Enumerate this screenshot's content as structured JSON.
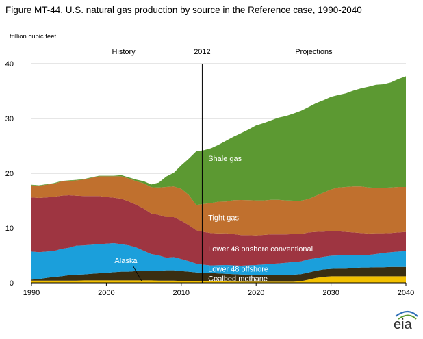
{
  "chart_data": {
    "type": "area",
    "title": "Figure MT-44. U.S. natural gas production by source in the Reference case, 1990-2040",
    "ylabel": "trillion cubic feet",
    "xlabel": "",
    "xlim": [
      1990,
      2040
    ],
    "ylim": [
      0,
      40
    ],
    "x_ticks": [
      1990,
      2000,
      2010,
      2020,
      2030,
      2040
    ],
    "y_ticks": [
      0,
      10,
      20,
      30,
      40
    ],
    "grid": "horizontal",
    "stacked": true,
    "divider": {
      "x": 2012.8,
      "label": "2012"
    },
    "period_labels": [
      "History",
      "Projections"
    ],
    "logo_text": "eia",
    "x": [
      1990,
      1991,
      1992,
      1993,
      1994,
      1995,
      1996,
      1997,
      1998,
      1999,
      2000,
      2001,
      2002,
      2003,
      2004,
      2005,
      2006,
      2007,
      2008,
      2009,
      2010,
      2011,
      2012,
      2013,
      2014,
      2015,
      2016,
      2017,
      2018,
      2019,
      2020,
      2021,
      2022,
      2023,
      2024,
      2025,
      2026,
      2027,
      2028,
      2029,
      2030,
      2031,
      2032,
      2033,
      2034,
      2035,
      2036,
      2037,
      2038,
      2039,
      2040
    ],
    "series": [
      {
        "name": "Alaska",
        "color": "#f2c000",
        "label_color": "#f2c000",
        "values": [
          0.4,
          0.4,
          0.4,
          0.4,
          0.4,
          0.4,
          0.4,
          0.45,
          0.45,
          0.45,
          0.45,
          0.45,
          0.45,
          0.45,
          0.45,
          0.45,
          0.45,
          0.4,
          0.4,
          0.4,
          0.35,
          0.35,
          0.3,
          0.3,
          0.28,
          0.26,
          0.25,
          0.24,
          0.22,
          0.2,
          0.2,
          0.2,
          0.2,
          0.2,
          0.2,
          0.2,
          0.3,
          0.6,
          0.9,
          1.1,
          1.2,
          1.2,
          1.2,
          1.2,
          1.2,
          1.2,
          1.2,
          1.2,
          1.2,
          1.2,
          1.2
        ]
      },
      {
        "name": "Coalbed methane",
        "color": "#3a2e12",
        "label_color": "#ffffff",
        "values": [
          0.2,
          0.3,
          0.5,
          0.7,
          0.8,
          1.0,
          1.1,
          1.1,
          1.2,
          1.3,
          1.4,
          1.5,
          1.6,
          1.6,
          1.7,
          1.7,
          1.7,
          1.8,
          1.9,
          1.9,
          1.8,
          1.7,
          1.6,
          1.55,
          1.5,
          1.45,
          1.4,
          1.35,
          1.3,
          1.3,
          1.25,
          1.25,
          1.25,
          1.25,
          1.25,
          1.3,
          1.3,
          1.3,
          1.3,
          1.35,
          1.35,
          1.4,
          1.4,
          1.5,
          1.6,
          1.6,
          1.65,
          1.65,
          1.7,
          1.7,
          1.7
        ]
      },
      {
        "name": "Lower 48 offshore",
        "color": "#1b9fdb",
        "label_color": "#ffffff",
        "values": [
          5.1,
          4.9,
          4.8,
          4.7,
          5.0,
          5.0,
          5.3,
          5.3,
          5.3,
          5.3,
          5.3,
          5.3,
          5.0,
          4.8,
          4.3,
          3.7,
          3.1,
          2.8,
          2.3,
          2.4,
          2.2,
          1.9,
          1.6,
          1.45,
          1.4,
          1.5,
          1.6,
          1.6,
          1.6,
          1.7,
          1.8,
          1.9,
          2.0,
          2.1,
          2.2,
          2.3,
          2.3,
          2.4,
          2.3,
          2.3,
          2.4,
          2.4,
          2.4,
          2.3,
          2.3,
          2.3,
          2.4,
          2.6,
          2.7,
          2.8,
          2.9
        ]
      },
      {
        "name": "Lower 48 onshore conventional",
        "color": "#9e3541",
        "label_color": "#ffffff",
        "values": [
          9.9,
          9.9,
          9.9,
          9.9,
          9.7,
          9.6,
          9.1,
          9.0,
          8.9,
          8.8,
          8.5,
          8.3,
          8.3,
          8.0,
          7.8,
          7.7,
          7.4,
          7.4,
          7.4,
          7.3,
          7.0,
          6.6,
          6.1,
          6.0,
          5.9,
          5.8,
          5.8,
          5.7,
          5.6,
          5.5,
          5.4,
          5.4,
          5.4,
          5.3,
          5.2,
          5.1,
          5.0,
          4.9,
          4.8,
          4.6,
          4.5,
          4.4,
          4.3,
          4.2,
          4.0,
          3.9,
          3.8,
          3.6,
          3.5,
          3.5,
          3.5
        ]
      },
      {
        "name": "Tight gas",
        "color": "#c0702e",
        "label_color": "#ffffff",
        "values": [
          2.2,
          2.2,
          2.3,
          2.4,
          2.6,
          2.6,
          2.8,
          3.0,
          3.3,
          3.6,
          3.8,
          3.9,
          4.1,
          4.2,
          4.3,
          4.6,
          4.8,
          5.0,
          5.5,
          5.6,
          5.8,
          5.5,
          4.6,
          5.1,
          5.5,
          5.8,
          5.8,
          6.2,
          6.4,
          6.4,
          6.4,
          6.3,
          6.3,
          6.3,
          6.2,
          6.1,
          6.1,
          6.1,
          6.6,
          7.1,
          7.6,
          8.0,
          8.2,
          8.4,
          8.5,
          8.4,
          8.3,
          8.3,
          8.3,
          8.3,
          8.2
        ]
      },
      {
        "name": "Shale gas",
        "color": "#5c9932",
        "label_color": "#ffffff",
        "values": [
          0.1,
          0.1,
          0.1,
          0.1,
          0.1,
          0.1,
          0.1,
          0.1,
          0.1,
          0.1,
          0.1,
          0.1,
          0.2,
          0.2,
          0.3,
          0.4,
          0.5,
          0.9,
          1.9,
          2.5,
          4.3,
          6.6,
          9.8,
          9.8,
          10.0,
          10.4,
          11.1,
          11.6,
          12.2,
          12.9,
          13.7,
          14.1,
          14.5,
          15.0,
          15.4,
          15.9,
          16.4,
          16.8,
          16.9,
          16.9,
          16.9,
          16.9,
          17.1,
          17.5,
          17.9,
          18.4,
          18.8,
          18.9,
          19.2,
          19.7,
          20.2
        ]
      }
    ]
  }
}
